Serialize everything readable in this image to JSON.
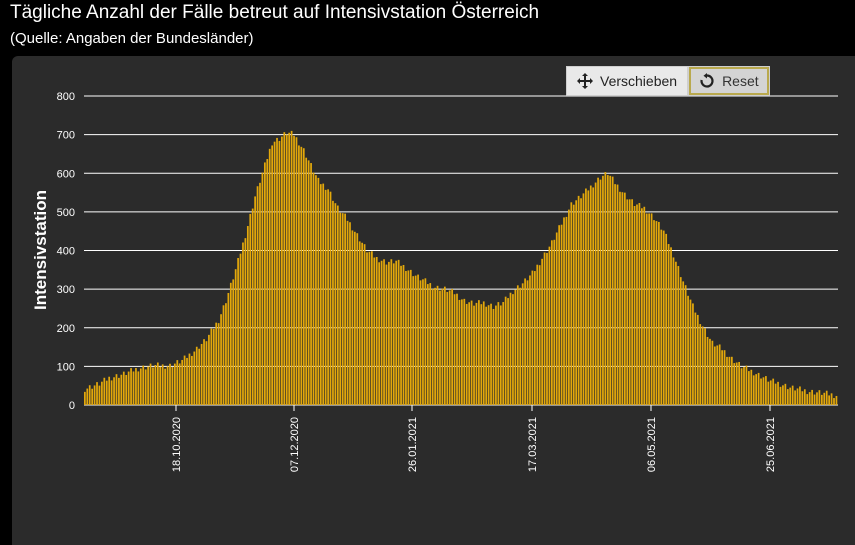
{
  "header": {
    "title": "Tägliche Anzahl der Fälle betreut auf Intensivstation Österreich",
    "subtitle": "(Quelle: Angaben der Bundesländer)"
  },
  "toolbar": {
    "pan_label": "Verschieben",
    "reset_label": "Reset"
  },
  "colors": {
    "bar": "#e3a80b",
    "grid": "#ffffff",
    "panel": "#2b2b2b"
  },
  "chart_data": {
    "type": "bar",
    "ylabel": "Intensivstation",
    "ylim": [
      0,
      800
    ],
    "yticks": [
      0,
      100,
      200,
      300,
      400,
      500,
      600,
      700,
      800
    ],
    "xticks": [
      "18.10.2020",
      "07.12.2020",
      "26.01.2021",
      "17.03.2021",
      "06.05.2021",
      "25.06.2021"
    ],
    "grid": true,
    "anchors": [
      [
        0,
        42
      ],
      [
        6,
        55
      ],
      [
        10,
        70
      ],
      [
        16,
        80
      ],
      [
        22,
        95
      ],
      [
        28,
        102
      ],
      [
        35,
        102
      ],
      [
        40,
        115
      ],
      [
        45,
        140
      ],
      [
        50,
        170
      ],
      [
        55,
        220
      ],
      [
        58,
        270
      ],
      [
        62,
        350
      ],
      [
        66,
        440
      ],
      [
        70,
        540
      ],
      [
        74,
        620
      ],
      [
        77,
        680
      ],
      [
        80,
        690
      ],
      [
        83,
        705
      ],
      [
        86,
        700
      ],
      [
        90,
        660
      ],
      [
        93,
        620
      ],
      [
        96,
        580
      ],
      [
        100,
        560
      ],
      [
        104,
        510
      ],
      [
        108,
        480
      ],
      [
        112,
        440
      ],
      [
        116,
        400
      ],
      [
        120,
        380
      ],
      [
        124,
        370
      ],
      [
        128,
        372
      ],
      [
        132,
        355
      ],
      [
        136,
        335
      ],
      [
        140,
        320
      ],
      [
        144,
        305
      ],
      [
        148,
        300
      ],
      [
        152,
        290
      ],
      [
        156,
        270
      ],
      [
        160,
        262
      ],
      [
        164,
        265
      ],
      [
        168,
        255
      ],
      [
        172,
        265
      ],
      [
        176,
        295
      ],
      [
        180,
        315
      ],
      [
        184,
        340
      ],
      [
        188,
        380
      ],
      [
        192,
        420
      ],
      [
        196,
        470
      ],
      [
        200,
        520
      ],
      [
        204,
        540
      ],
      [
        208,
        565
      ],
      [
        212,
        590
      ],
      [
        215,
        600
      ],
      [
        218,
        575
      ],
      [
        222,
        545
      ],
      [
        226,
        520
      ],
      [
        230,
        510
      ],
      [
        234,
        485
      ],
      [
        238,
        450
      ],
      [
        242,
        390
      ],
      [
        246,
        320
      ],
      [
        250,
        255
      ],
      [
        254,
        205
      ],
      [
        258,
        160
      ],
      [
        262,
        145
      ],
      [
        266,
        120
      ],
      [
        270,
        100
      ],
      [
        274,
        88
      ],
      [
        278,
        75
      ],
      [
        282,
        62
      ],
      [
        286,
        55
      ],
      [
        290,
        45
      ],
      [
        294,
        40
      ],
      [
        298,
        35
      ],
      [
        302,
        32
      ],
      [
        306,
        28
      ],
      [
        309,
        25
      ]
    ]
  }
}
